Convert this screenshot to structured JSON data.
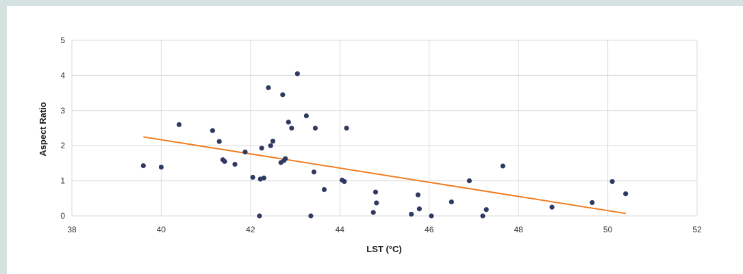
{
  "chart_data": {
    "type": "scatter",
    "title": "",
    "xlabel": "LST (°C)",
    "ylabel": "Aspect Ratio",
    "xlim": [
      38,
      52
    ],
    "ylim": [
      0,
      5
    ],
    "x_ticks": [
      38,
      40,
      42,
      44,
      46,
      48,
      50,
      52
    ],
    "y_ticks": [
      0,
      1,
      2,
      3,
      4,
      5
    ],
    "grid": true,
    "legend": "none",
    "colors": {
      "points": "#2f3a63",
      "trendline": "#f07d21",
      "grid": "#d9d9d9"
    },
    "series": [
      {
        "points": [
          [
            39.6,
            1.43
          ],
          [
            40.0,
            1.39
          ],
          [
            40.4,
            2.6
          ],
          [
            41.15,
            2.43
          ],
          [
            41.3,
            2.12
          ],
          [
            41.38,
            1.6
          ],
          [
            41.42,
            1.55
          ],
          [
            41.65,
            1.47
          ],
          [
            41.88,
            1.82
          ],
          [
            42.05,
            1.1
          ],
          [
            42.2,
            0.0
          ],
          [
            42.22,
            1.05
          ],
          [
            42.25,
            1.93
          ],
          [
            42.3,
            1.08
          ],
          [
            42.4,
            3.65
          ],
          [
            42.45,
            2.0
          ],
          [
            42.5,
            2.13
          ],
          [
            42.68,
            1.52
          ],
          [
            42.72,
            3.45
          ],
          [
            42.75,
            1.58
          ],
          [
            42.78,
            1.63
          ],
          [
            42.85,
            2.67
          ],
          [
            42.92,
            2.5
          ],
          [
            43.05,
            4.05
          ],
          [
            43.25,
            2.85
          ],
          [
            43.35,
            0.0
          ],
          [
            43.42,
            1.25
          ],
          [
            43.45,
            2.5
          ],
          [
            43.65,
            0.75
          ],
          [
            44.05,
            1.02
          ],
          [
            44.1,
            0.98
          ],
          [
            44.15,
            2.5
          ],
          [
            44.75,
            0.1
          ],
          [
            44.8,
            0.68
          ],
          [
            44.82,
            0.37
          ],
          [
            45.6,
            0.05
          ],
          [
            45.75,
            0.6
          ],
          [
            45.78,
            0.2
          ],
          [
            46.05,
            0.0
          ],
          [
            46.5,
            0.4
          ],
          [
            46.9,
            1.0
          ],
          [
            47.2,
            0.0
          ],
          [
            47.28,
            0.18
          ],
          [
            47.65,
            1.42
          ],
          [
            48.75,
            0.25
          ],
          [
            49.65,
            0.38
          ],
          [
            50.1,
            0.98
          ],
          [
            50.4,
            0.63
          ]
        ]
      }
    ],
    "trendline": {
      "x": [
        39.6,
        50.4
      ],
      "y": [
        2.25,
        0.07
      ]
    }
  }
}
